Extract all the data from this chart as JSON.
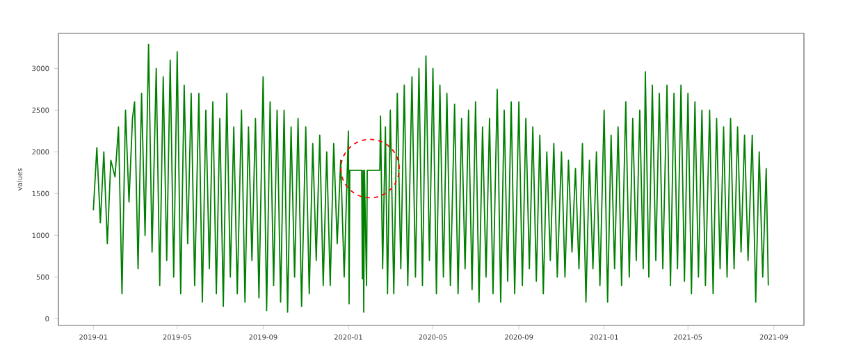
{
  "chart_data": {
    "type": "line",
    "ylabel": "values",
    "color": "#008000",
    "marker": "none",
    "line_style": "solid",
    "grid": false,
    "xlim": [
      "2018-11-12",
      "2021-10-14"
    ],
    "ylim": [
      -80,
      3420
    ],
    "xticks": [
      "2019-01",
      "2019-05",
      "2019-09",
      "2020-01",
      "2020-05",
      "2020-09",
      "2021-01",
      "2021-05",
      "2021-09"
    ],
    "yticks": [
      0,
      500,
      1000,
      1500,
      2000,
      2500,
      3000
    ],
    "x": [
      "2019-01-01",
      "2019-01-06",
      "2019-01-11",
      "2019-01-16",
      "2019-01-21",
      "2019-01-26",
      "2019-02-01",
      "2019-02-06",
      "2019-02-11",
      "2019-02-16",
      "2019-02-21",
      "2019-02-26",
      "2019-03-01",
      "2019-03-06",
      "2019-03-11",
      "2019-03-16",
      "2019-03-21",
      "2019-03-26",
      "2019-04-01",
      "2019-04-06",
      "2019-04-11",
      "2019-04-16",
      "2019-04-21",
      "2019-04-26",
      "2019-05-01",
      "2019-05-06",
      "2019-05-11",
      "2019-05-16",
      "2019-05-21",
      "2019-05-26",
      "2019-06-01",
      "2019-06-06",
      "2019-06-11",
      "2019-06-16",
      "2019-06-21",
      "2019-06-26",
      "2019-07-01",
      "2019-07-06",
      "2019-07-11",
      "2019-07-16",
      "2019-07-21",
      "2019-07-26",
      "2019-08-01",
      "2019-08-06",
      "2019-08-11",
      "2019-08-16",
      "2019-08-21",
      "2019-08-26",
      "2019-09-01",
      "2019-09-06",
      "2019-09-11",
      "2019-09-16",
      "2019-09-21",
      "2019-09-26",
      "2019-10-01",
      "2019-10-06",
      "2019-10-11",
      "2019-10-16",
      "2019-10-21",
      "2019-10-26",
      "2019-11-01",
      "2019-11-06",
      "2019-11-11",
      "2019-11-16",
      "2019-11-21",
      "2019-11-26",
      "2019-12-01",
      "2019-12-06",
      "2019-12-11",
      "2019-12-16",
      "2019-12-21",
      "2019-12-26",
      "2020-01-01",
      "2020-01-02",
      "2020-01-03",
      "2020-01-20",
      "2020-01-21",
      "2020-01-22",
      "2020-01-23",
      "2020-01-24",
      "2020-01-27",
      "2020-01-28",
      "2020-02-15",
      "2020-02-16",
      "2020-02-19",
      "2020-02-23",
      "2020-02-26",
      "2020-03-01",
      "2020-03-06",
      "2020-03-11",
      "2020-03-16",
      "2020-03-21",
      "2020-03-26",
      "2020-04-01",
      "2020-04-06",
      "2020-04-11",
      "2020-04-16",
      "2020-04-21",
      "2020-04-26",
      "2020-05-01",
      "2020-05-06",
      "2020-05-11",
      "2020-05-16",
      "2020-05-21",
      "2020-05-26",
      "2020-06-01",
      "2020-06-06",
      "2020-06-11",
      "2020-06-16",
      "2020-06-21",
      "2020-06-26",
      "2020-07-01",
      "2020-07-06",
      "2020-07-11",
      "2020-07-16",
      "2020-07-21",
      "2020-07-26",
      "2020-08-01",
      "2020-08-06",
      "2020-08-11",
      "2020-08-16",
      "2020-08-21",
      "2020-08-26",
      "2020-09-01",
      "2020-09-06",
      "2020-09-11",
      "2020-09-16",
      "2020-09-21",
      "2020-09-26",
      "2020-10-01",
      "2020-10-06",
      "2020-10-11",
      "2020-10-16",
      "2020-10-21",
      "2020-10-26",
      "2020-11-01",
      "2020-11-06",
      "2020-11-11",
      "2020-11-16",
      "2020-11-21",
      "2020-11-26",
      "2020-12-01",
      "2020-12-06",
      "2020-12-11",
      "2020-12-16",
      "2020-12-21",
      "2020-12-26",
      "2021-01-01",
      "2021-01-06",
      "2021-01-11",
      "2021-01-16",
      "2021-01-21",
      "2021-01-26",
      "2021-02-01",
      "2021-02-06",
      "2021-02-11",
      "2021-02-16",
      "2021-02-21",
      "2021-02-26",
      "2021-03-01",
      "2021-03-06",
      "2021-03-11",
      "2021-03-16",
      "2021-03-21",
      "2021-03-26",
      "2021-04-01",
      "2021-04-06",
      "2021-04-11",
      "2021-04-16",
      "2021-04-21",
      "2021-04-26",
      "2021-05-01",
      "2021-05-06",
      "2021-05-11",
      "2021-05-16",
      "2021-05-21",
      "2021-05-26",
      "2021-06-01",
      "2021-06-06",
      "2021-06-11",
      "2021-06-16",
      "2021-06-21",
      "2021-06-26",
      "2021-07-01",
      "2021-07-06",
      "2021-07-11",
      "2021-07-16",
      "2021-07-21",
      "2021-07-26",
      "2021-08-01",
      "2021-08-06",
      "2021-08-11",
      "2021-08-16",
      "2021-08-21",
      "2021-08-24"
    ],
    "values": [
      1300,
      2050,
      1150,
      2000,
      900,
      1900,
      1700,
      2300,
      300,
      2500,
      1400,
      2400,
      2600,
      600,
      2700,
      1000,
      3290,
      800,
      3000,
      400,
      2900,
      700,
      3100,
      500,
      3200,
      300,
      2800,
      900,
      2700,
      400,
      2700,
      200,
      2500,
      600,
      2600,
      300,
      2400,
      150,
      2700,
      500,
      2300,
      300,
      2500,
      200,
      2300,
      700,
      2400,
      250,
      2900,
      100,
      2600,
      400,
      2500,
      200,
      2500,
      80,
      2300,
      500,
      2400,
      150,
      2300,
      300,
      2100,
      700,
      2200,
      400,
      2000,
      400,
      2100,
      900,
      1900,
      500,
      2250,
      180,
      1780,
      1780,
      480,
      1780,
      80,
      1780,
      400,
      1780,
      1780,
      2430,
      600,
      2300,
      300,
      2500,
      300,
      2700,
      600,
      2800,
      400,
      2900,
      500,
      3000,
      400,
      3150,
      700,
      3000,
      300,
      2800,
      500,
      2700,
      400,
      2570,
      300,
      2400,
      600,
      2500,
      350,
      2600,
      200,
      2300,
      500,
      2400,
      300,
      2750,
      200,
      2500,
      450,
      2600,
      300,
      2600,
      400,
      2400,
      600,
      2300,
      450,
      2200,
      300,
      2000,
      700,
      2100,
      500,
      2000,
      500,
      1900,
      800,
      1800,
      600,
      2100,
      200,
      1900,
      600,
      2000,
      400,
      2500,
      200,
      2200,
      600,
      2300,
      400,
      2600,
      500,
      2400,
      700,
      2500,
      600,
      2960,
      500,
      2800,
      700,
      2700,
      600,
      2800,
      400,
      2700,
      600,
      2800,
      450,
      2700,
      300,
      2600,
      500,
      2500,
      400,
      2500,
      300,
      2400,
      600,
      2300,
      500,
      2400,
      600,
      2300,
      800,
      2200,
      700,
      2200,
      200,
      2000,
      500,
      1800,
      400
    ]
  }
}
